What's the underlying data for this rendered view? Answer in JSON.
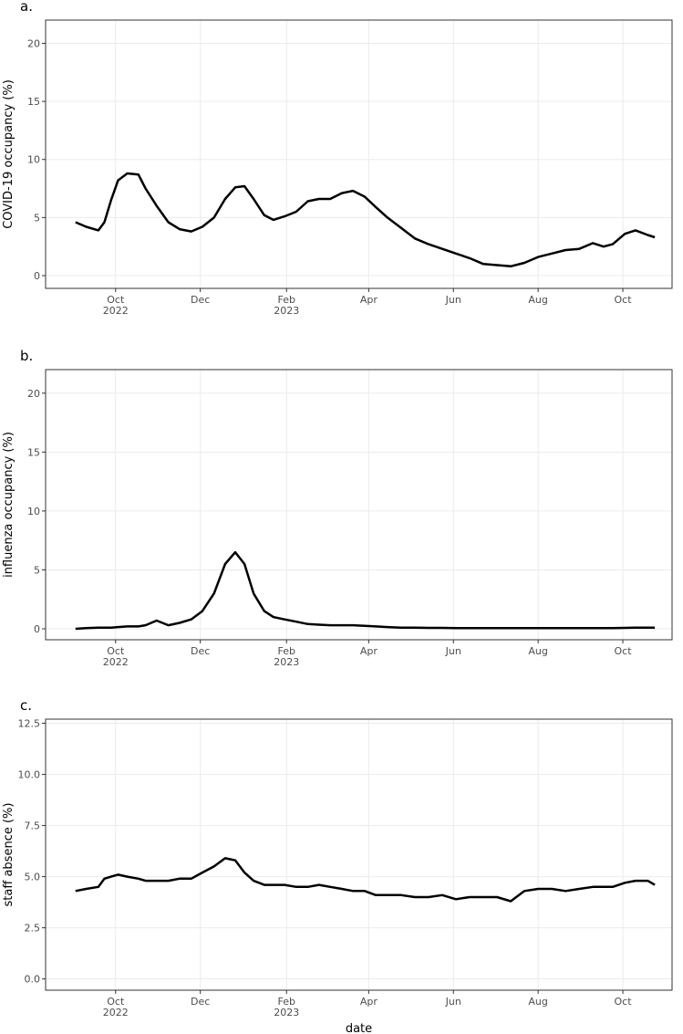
{
  "chart_data": [
    {
      "type": "line",
      "title": "a.",
      "ylabel": "COVID-19 occupancy (%)",
      "xlim": [
        2022.61,
        2023.845
      ],
      "ylim": [
        -1.1,
        22
      ],
      "xticks": [
        {
          "value": 2022.748,
          "label": "Oct\n2022"
        },
        {
          "value": 2022.915,
          "label": "Dec"
        },
        {
          "value": 2023.085,
          "label": "Feb\n2023"
        },
        {
          "value": 2023.247,
          "label": "Apr"
        },
        {
          "value": 2023.414,
          "label": "Jun"
        },
        {
          "value": 2023.581,
          "label": "Aug"
        },
        {
          "value": 2023.748,
          "label": "Oct"
        }
      ],
      "yticks": [
        0,
        5,
        10,
        15,
        20
      ],
      "grid": true,
      "x": [
        2022.669,
        2022.69,
        2022.714,
        2022.726,
        2022.739,
        2022.753,
        2022.771,
        2022.793,
        2022.807,
        2022.829,
        2022.852,
        2022.874,
        2022.897,
        2022.919,
        2022.942,
        2022.964,
        2022.984,
        2023.002,
        2023.02,
        2023.041,
        2023.059,
        2023.081,
        2023.104,
        2023.127,
        2023.149,
        2023.171,
        2023.194,
        2023.216,
        2023.239,
        2023.261,
        2023.284,
        2023.311,
        2023.338,
        2023.365,
        2023.392,
        2023.419,
        2023.446,
        2023.473,
        2023.5,
        2023.527,
        2023.554,
        2023.581,
        2023.608,
        2023.635,
        2023.662,
        2023.689,
        2023.71,
        2023.728,
        2023.752,
        2023.773,
        2023.797,
        2023.811
      ],
      "series": [
        {
          "color": "#000000",
          "values": [
            4.6,
            4.2,
            3.9,
            4.6,
            6.5,
            8.2,
            8.8,
            8.7,
            7.5,
            6.0,
            4.6,
            4.0,
            3.8,
            4.2,
            5.0,
            6.6,
            7.6,
            7.7,
            6.6,
            5.2,
            4.8,
            5.1,
            5.5,
            6.4,
            6.6,
            6.6,
            7.1,
            7.3,
            6.8,
            5.9,
            5.0,
            4.1,
            3.2,
            2.7,
            2.3,
            1.9,
            1.5,
            1.0,
            0.9,
            0.8,
            1.1,
            1.6,
            1.9,
            2.2,
            2.3,
            2.8,
            2.5,
            2.7,
            3.6,
            3.9,
            3.5,
            3.3
          ]
        }
      ]
    },
    {
      "type": "line",
      "title": "b.",
      "ylabel": "influenza occupancy (%)",
      "xlim": [
        2022.61,
        2023.845
      ],
      "ylim": [
        -0.93,
        22
      ],
      "xticks": [
        {
          "value": 2022.748,
          "label": "Oct\n2022"
        },
        {
          "value": 2022.915,
          "label": "Dec"
        },
        {
          "value": 2023.085,
          "label": "Feb\n2023"
        },
        {
          "value": 2023.247,
          "label": "Apr"
        },
        {
          "value": 2023.414,
          "label": "Jun"
        },
        {
          "value": 2023.581,
          "label": "Aug"
        },
        {
          "value": 2023.748,
          "label": "Oct"
        }
      ],
      "yticks": [
        0,
        5,
        10,
        15,
        20
      ],
      "grid": true,
      "x": [
        2022.669,
        2022.69,
        2022.714,
        2022.726,
        2022.739,
        2022.753,
        2022.771,
        2022.793,
        2022.807,
        2022.829,
        2022.852,
        2022.874,
        2022.897,
        2022.919,
        2022.942,
        2022.964,
        2022.984,
        2023.002,
        2023.02,
        2023.041,
        2023.059,
        2023.081,
        2023.104,
        2023.127,
        2023.149,
        2023.171,
        2023.194,
        2023.216,
        2023.239,
        2023.261,
        2023.284,
        2023.311,
        2023.338,
        2023.365,
        2023.392,
        2023.419,
        2023.446,
        2023.473,
        2023.5,
        2023.527,
        2023.554,
        2023.581,
        2023.608,
        2023.635,
        2023.662,
        2023.689,
        2023.71,
        2023.728,
        2023.752,
        2023.773,
        2023.797,
        2023.811
      ],
      "series": [
        {
          "color": "#000000",
          "values": [
            0.0,
            0.05,
            0.1,
            0.1,
            0.1,
            0.15,
            0.2,
            0.2,
            0.3,
            0.7,
            0.3,
            0.5,
            0.8,
            1.5,
            3.0,
            5.5,
            6.5,
            5.5,
            3.0,
            1.5,
            1.0,
            0.8,
            0.6,
            0.4,
            0.35,
            0.3,
            0.3,
            0.3,
            0.25,
            0.2,
            0.15,
            0.1,
            0.1,
            0.08,
            0.08,
            0.05,
            0.05,
            0.05,
            0.05,
            0.05,
            0.05,
            0.05,
            0.05,
            0.05,
            0.05,
            0.05,
            0.05,
            0.05,
            0.08,
            0.1,
            0.1,
            0.1
          ]
        }
      ]
    },
    {
      "type": "line",
      "title": "c.",
      "ylabel": "staff absence (%)",
      "xlabel": "date",
      "xlim": [
        2022.61,
        2023.845
      ],
      "ylim": [
        -0.55,
        12.7
      ],
      "xticks": [
        {
          "value": 2022.748,
          "label": "Oct\n2022"
        },
        {
          "value": 2022.915,
          "label": "Dec"
        },
        {
          "value": 2023.085,
          "label": "Feb\n2023"
        },
        {
          "value": 2023.247,
          "label": "Apr"
        },
        {
          "value": 2023.414,
          "label": "Jun"
        },
        {
          "value": 2023.581,
          "label": "Aug"
        },
        {
          "value": 2023.748,
          "label": "Oct"
        }
      ],
      "yticks": [
        {
          "value": 0,
          "label": "0.0"
        },
        {
          "value": 2.5,
          "label": "2.5"
        },
        {
          "value": 5,
          "label": "5.0"
        },
        {
          "value": 7.5,
          "label": "7.5"
        },
        {
          "value": 10,
          "label": "10.0"
        },
        {
          "value": 12.5,
          "label": "12.5"
        }
      ],
      "grid": true,
      "x": [
        2022.669,
        2022.69,
        2022.714,
        2022.726,
        2022.739,
        2022.753,
        2022.771,
        2022.793,
        2022.807,
        2022.829,
        2022.852,
        2022.874,
        2022.897,
        2022.919,
        2022.942,
        2022.964,
        2022.984,
        2023.002,
        2023.02,
        2023.041,
        2023.059,
        2023.081,
        2023.104,
        2023.127,
        2023.149,
        2023.171,
        2023.194,
        2023.216,
        2023.239,
        2023.261,
        2023.284,
        2023.311,
        2023.338,
        2023.365,
        2023.392,
        2023.419,
        2023.446,
        2023.473,
        2023.5,
        2023.527,
        2023.554,
        2023.581,
        2023.608,
        2023.635,
        2023.662,
        2023.689,
        2023.71,
        2023.728,
        2023.752,
        2023.773,
        2023.797,
        2023.811
      ],
      "series": [
        {
          "color": "#000000",
          "values": [
            4.3,
            4.4,
            4.5,
            4.9,
            5.0,
            5.1,
            5.0,
            4.9,
            4.8,
            4.8,
            4.8,
            4.9,
            4.9,
            5.2,
            5.5,
            5.9,
            5.8,
            5.2,
            4.8,
            4.6,
            4.6,
            4.6,
            4.5,
            4.5,
            4.6,
            4.5,
            4.4,
            4.3,
            4.3,
            4.1,
            4.1,
            4.1,
            4.0,
            4.0,
            4.1,
            3.9,
            4.0,
            4.0,
            4.0,
            3.8,
            4.3,
            4.4,
            4.4,
            4.3,
            4.4,
            4.5,
            4.5,
            4.5,
            4.7,
            4.8,
            4.8,
            4.6
          ]
        }
      ]
    }
  ]
}
